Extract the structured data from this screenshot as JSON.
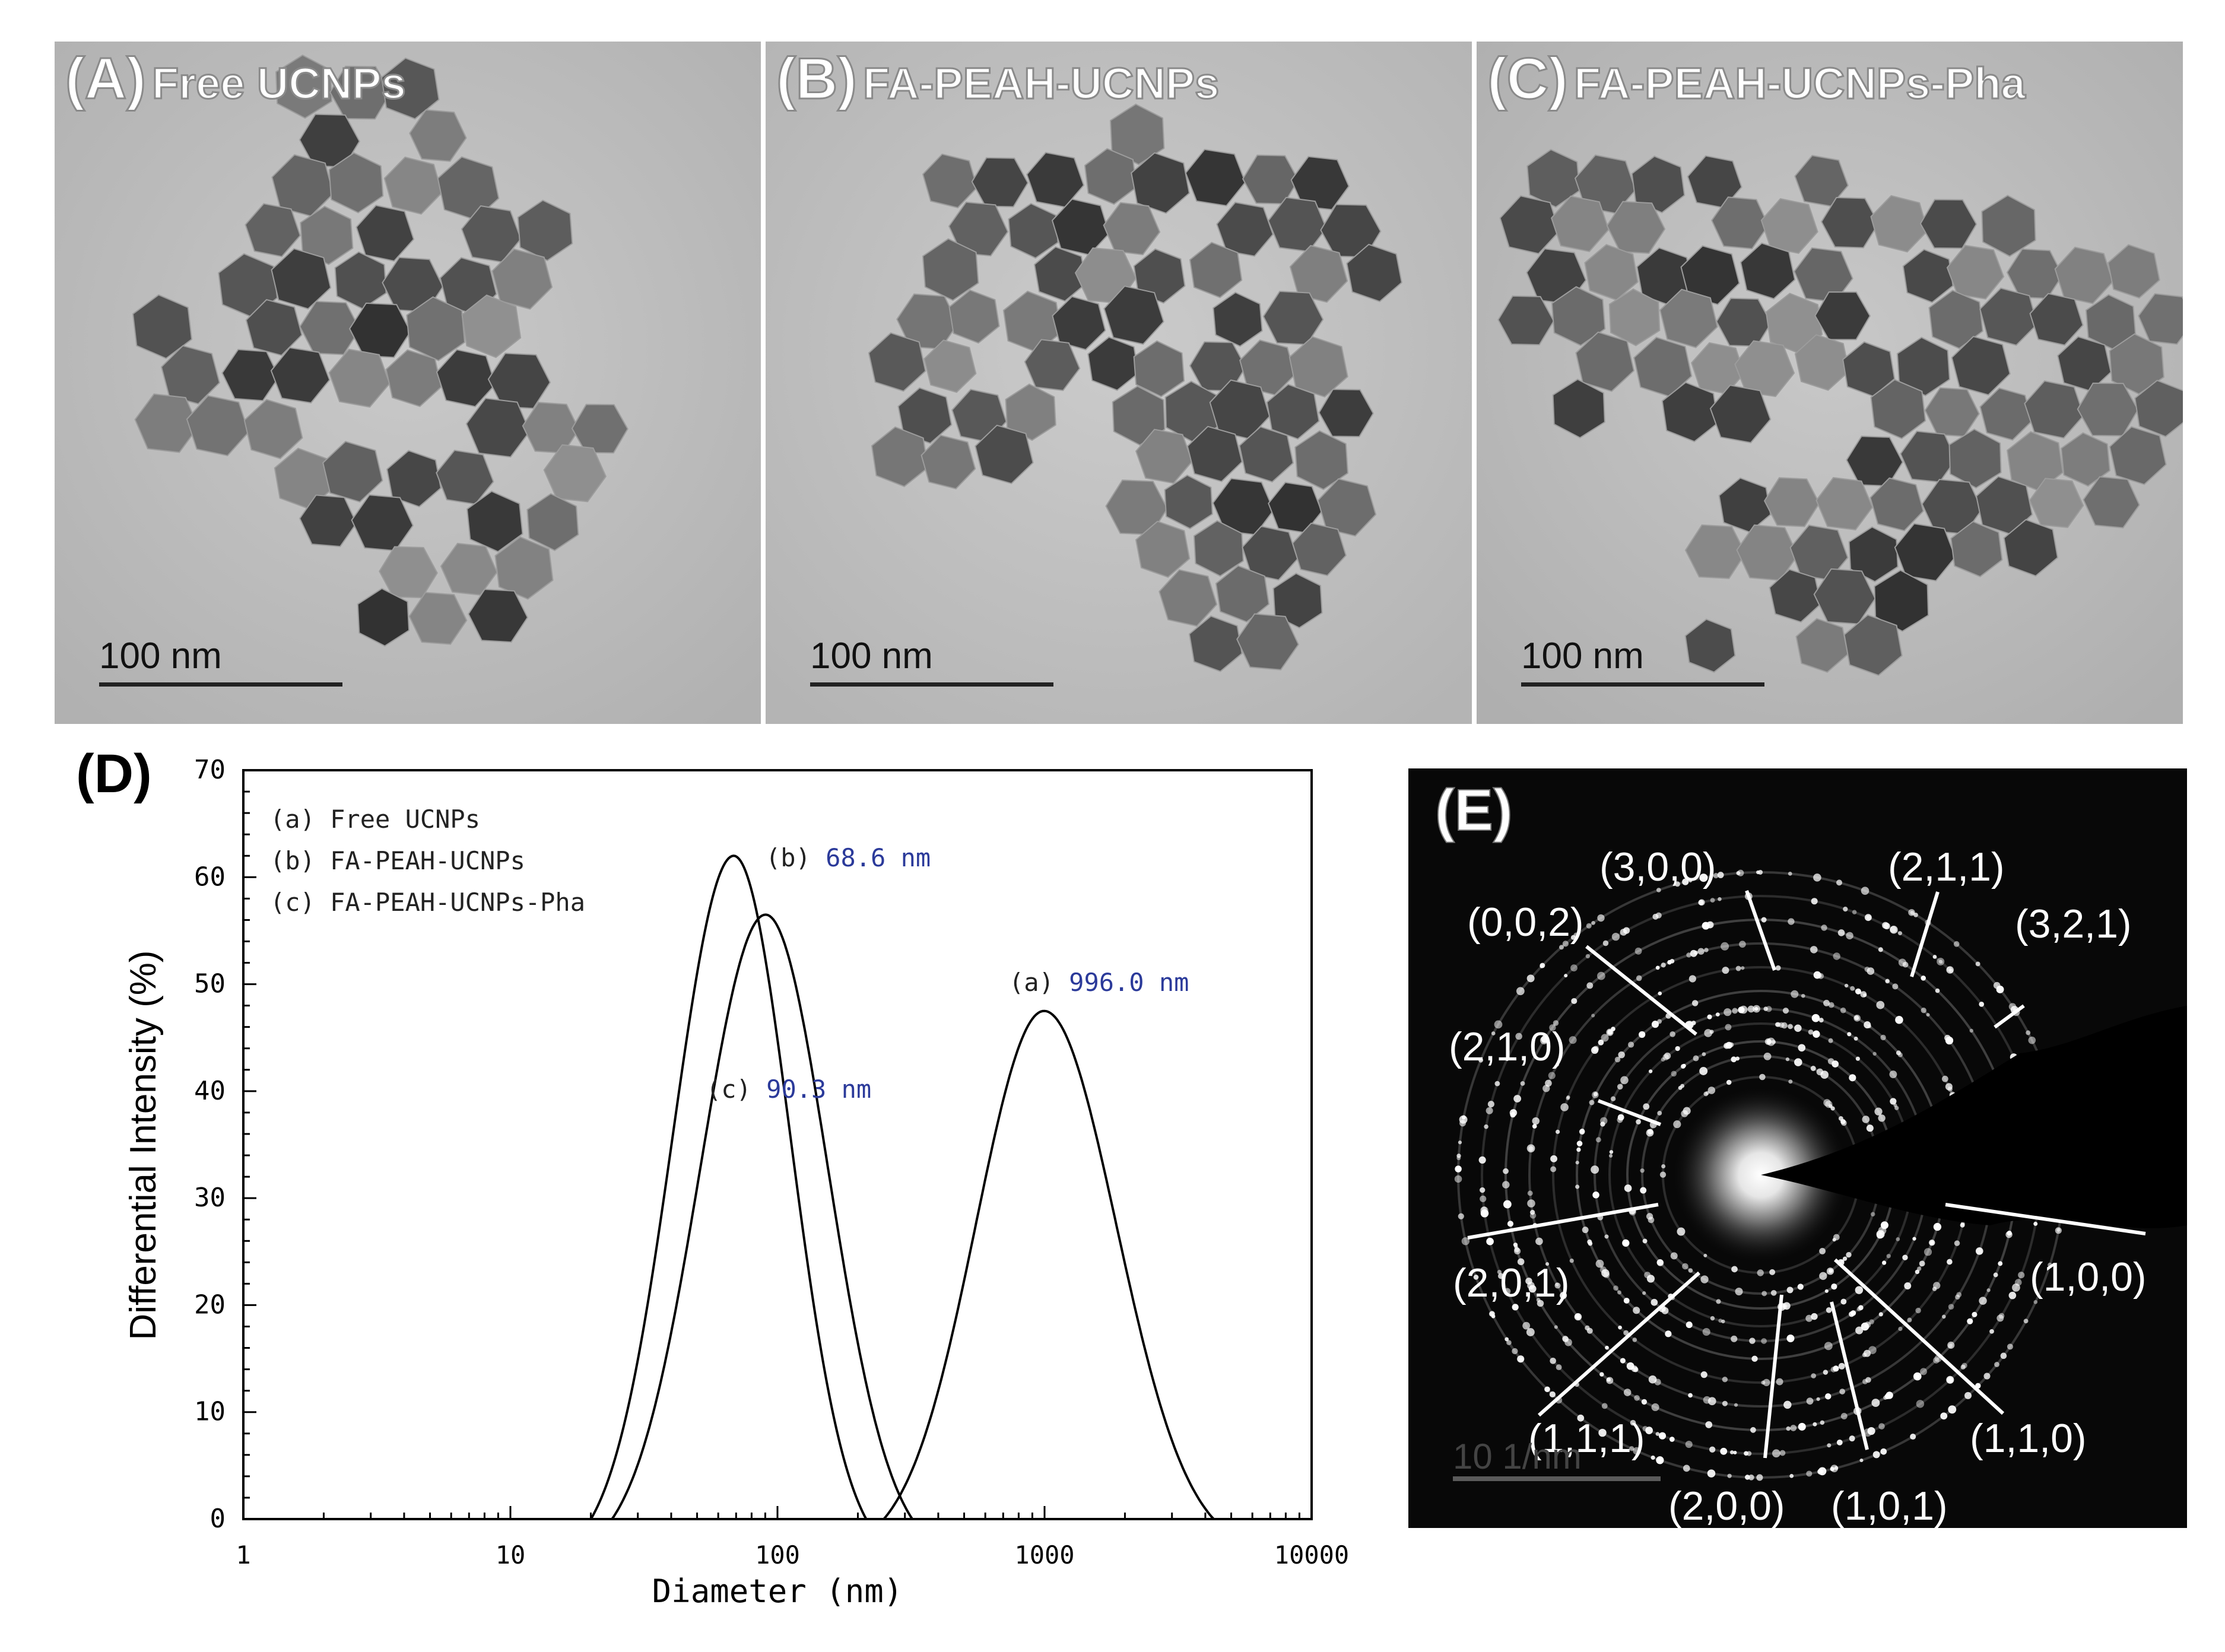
{
  "panels": {
    "A": {
      "letter": "(A)",
      "name": "Free UCNPs",
      "scale": "100 nm"
    },
    "B": {
      "letter": "(B)",
      "name": "FA-PEAH-UCNPs",
      "scale": "100 nm"
    },
    "C": {
      "letter": "(C)",
      "name": "FA-PEAH-UCNPs-Pha",
      "scale": "100 nm"
    },
    "E": {
      "letter": "(E)",
      "scale": "10 1/nm",
      "indices": [
        "(3,0,0)",
        "(2,1,1)",
        "(0,0,2)",
        "(3,2,1)",
        "(2,1,0)",
        "(2,0,1)",
        "(1,0,0)",
        "(1,1,1)",
        "(1,1,0)",
        "(2,0,0)",
        "(1,0,1)"
      ]
    }
  },
  "chart_data": {
    "type": "line",
    "panel_label": "(D)",
    "xlabel": "Diameter (nm)",
    "ylabel": "Differential Intensity (%)",
    "xscale": "log",
    "xlim": [
      1,
      10000
    ],
    "ylim": [
      0,
      70
    ],
    "x_ticks": [
      "1",
      "10",
      "100",
      "1000",
      "10000"
    ],
    "y_ticks": [
      "0",
      "10",
      "20",
      "30",
      "40",
      "50",
      "60",
      "70"
    ],
    "legend_position": "top-left",
    "legend": [
      "(a) Free UCNPs",
      "(b) FA-PEAH-UCNPs",
      "(c) FA-PEAH-UCNPs-Pha"
    ],
    "annotations": [
      {
        "tag": "(b)",
        "value": "68.6 nm",
        "x": 68.6,
        "y": 62
      },
      {
        "tag": "(a)",
        "value": "996.0 nm",
        "x": 996,
        "y": 47.5
      },
      {
        "tag": "(c)",
        "value": "90.3 nm",
        "x": 90.3,
        "y": 56.5
      }
    ],
    "series": [
      {
        "name": "(a) Free UCNPs",
        "peak_x": 996.0,
        "peak_y": 47.5,
        "range": [
          250,
          4300
        ]
      },
      {
        "name": "(b) FA-PEAH-UCNPs",
        "peak_x": 68.6,
        "peak_y": 62,
        "range": [
          20,
          215
        ]
      },
      {
        "name": "(c) FA-PEAH-UCNPs-Pha",
        "peak_x": 90.3,
        "peak_y": 56.5,
        "range": [
          24,
          320
        ]
      }
    ]
  }
}
